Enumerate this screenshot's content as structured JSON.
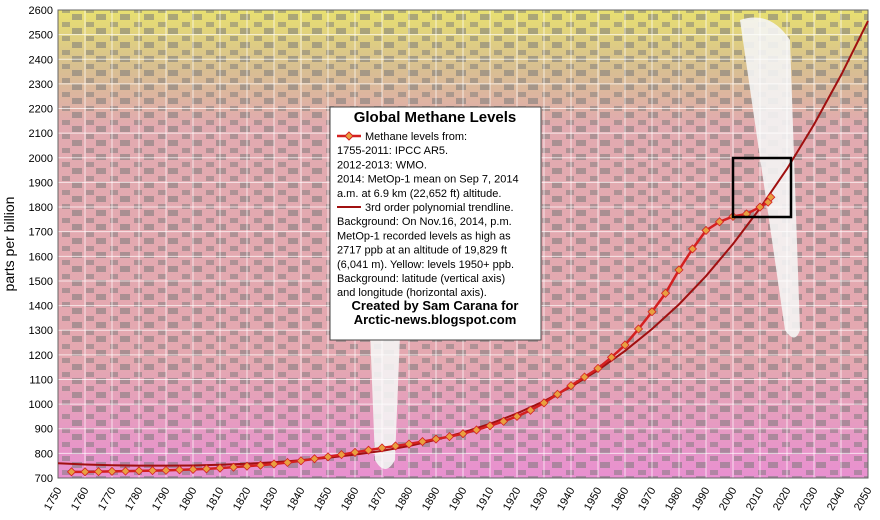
{
  "chart_data": {
    "type": "line",
    "title": "Global Methane Levels",
    "ylabel": "parts per billion",
    "annotations": [
      "1755-2011: IPCC AR5.",
      "2012-2013: WMO.",
      "2014: MetOp-1 mean on Sep 7, 2014",
      "a.m. at 6.9 km (22,652 ft) altitude."
    ],
    "background_notes": [
      "Background: On Nov.16, 2014, p.m.",
      "MetOp-1 recorded levels as high as",
      "2717 ppb at an altitude of 19,829 ft",
      "(6,041 m). Yellow: levels 1950+ ppb.",
      "Background: latitude (vertical axis)",
      "and longitude (horizontal axis)."
    ],
    "credits": [
      "Created by Sam Carana for",
      "Arctic-news.blogspot.com"
    ],
    "series": [
      {
        "name": "Methane levels from:",
        "color": "#d42020",
        "marker_color": "#e8a040",
        "x": [
          1755,
          1760,
          1765,
          1770,
          1775,
          1780,
          1785,
          1790,
          1795,
          1800,
          1805,
          1810,
          1815,
          1820,
          1825,
          1830,
          1835,
          1840,
          1845,
          1850,
          1855,
          1860,
          1865,
          1870,
          1875,
          1880,
          1885,
          1890,
          1895,
          1900,
          1905,
          1910,
          1915,
          1920,
          1925,
          1930,
          1935,
          1940,
          1945,
          1950,
          1955,
          1960,
          1965,
          1970,
          1975,
          1980,
          1985,
          1990,
          1995,
          2000,
          2005,
          2010,
          2013,
          2014
        ],
        "values": [
          725,
          725,
          726,
          727,
          728,
          729,
          730,
          731,
          733,
          735,
          737,
          740,
          744,
          748,
          752,
          757,
          763,
          770,
          778,
          786,
          795,
          804,
          813,
          822,
          830,
          838,
          848,
          858,
          868,
          880,
          895,
          912,
          930,
          950,
          975,
          1005,
          1040,
          1075,
          1110,
          1145,
          1190,
          1240,
          1305,
          1375,
          1450,
          1545,
          1630,
          1705,
          1740,
          1762,
          1772,
          1800,
          1820,
          1840
        ]
      },
      {
        "name": "3rd order polynomial trendline.",
        "color": "#a01010",
        "x": [
          1750,
          1760,
          1770,
          1780,
          1790,
          1800,
          1810,
          1820,
          1830,
          1840,
          1850,
          1860,
          1870,
          1880,
          1890,
          1900,
          1910,
          1920,
          1930,
          1940,
          1950,
          1960,
          1970,
          1980,
          1990,
          2000,
          2010,
          2020,
          2030,
          2040,
          2050
        ],
        "values": [
          760,
          755,
          752,
          750,
          750,
          751,
          754,
          758,
          764,
          772,
          782,
          795,
          810,
          830,
          855,
          885,
          920,
          962,
          1012,
          1070,
          1138,
          1216,
          1305,
          1405,
          1520,
          1650,
          1795,
          1955,
          2135,
          2335,
          2555
        ]
      }
    ],
    "xlim": [
      1750,
      2050
    ],
    "xticks": [
      1750,
      1760,
      1770,
      1780,
      1790,
      1800,
      1810,
      1820,
      1830,
      1840,
      1850,
      1860,
      1870,
      1880,
      1890,
      1900,
      1910,
      1920,
      1930,
      1940,
      1950,
      1960,
      1970,
      1980,
      1990,
      2000,
      2010,
      2020,
      2030,
      2040,
      2050
    ],
    "ylim": [
      700,
      2600
    ],
    "yticks": [
      700,
      800,
      900,
      1000,
      1100,
      1200,
      1300,
      1400,
      1500,
      1600,
      1700,
      1800,
      1900,
      2000,
      2100,
      2200,
      2300,
      2400,
      2500,
      2600
    ],
    "grid": true
  }
}
